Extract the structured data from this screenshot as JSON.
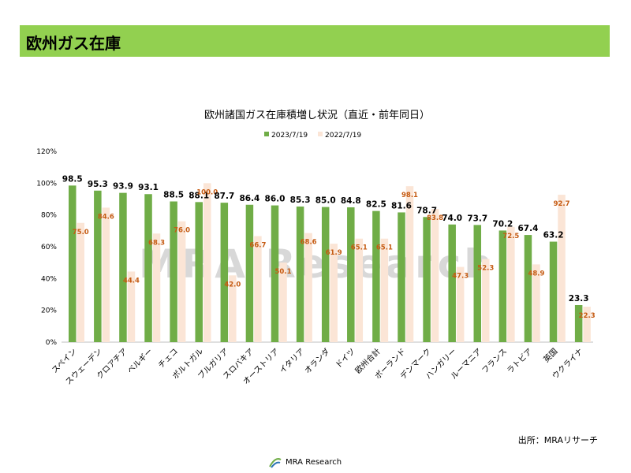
{
  "header": {
    "title": "欧州ガス在庫"
  },
  "source": "出所：MRAリサーチ",
  "footer": {
    "logo_text": "MRA Research"
  },
  "watermark": "MRA Research",
  "colors": {
    "header_bg": "#92d050",
    "series1": "#70ad47",
    "series2": "#fbe5d6",
    "label2": "#c55a11"
  },
  "chart_data": {
    "type": "bar",
    "title": "欧州諸国ガス在庫積増し状況（直近・前年同日）",
    "xlabel": "",
    "ylabel": "",
    "ylim": [
      0,
      120
    ],
    "yticks": [
      "0%",
      "20%",
      "40%",
      "60%",
      "80%",
      "100%",
      "120%"
    ],
    "grid": false,
    "legend_position": "top",
    "categories": [
      "スペイン",
      "スウェーデン",
      "クロアチア",
      "ベルギー",
      "チェコ",
      "ポルトガル",
      "ブルガリア",
      "スロバキア",
      "オーストリア",
      "イタリア",
      "オランダ",
      "ドイツ",
      "欧州合計",
      "ポーランド",
      "デンマーク",
      "ハンガリー",
      "ルーマニア",
      "フランス",
      "ラトビア",
      "英国",
      "ウクライナ"
    ],
    "series": [
      {
        "name": "2023/7/19",
        "values": [
          98.5,
          95.3,
          93.9,
          93.1,
          88.5,
          88.1,
          87.7,
          86.4,
          86.0,
          85.3,
          85.0,
          84.8,
          82.5,
          81.6,
          78.7,
          74.0,
          73.7,
          70.2,
          67.4,
          63.2,
          23.3
        ]
      },
      {
        "name": "2022/7/19",
        "values": [
          75.0,
          84.6,
          44.4,
          68.3,
          76.0,
          100.0,
          42.0,
          66.7,
          50.1,
          68.6,
          61.9,
          65.1,
          65.1,
          98.1,
          83.8,
          47.3,
          52.3,
          72.5,
          48.9,
          92.7,
          22.3
        ]
      }
    ]
  }
}
